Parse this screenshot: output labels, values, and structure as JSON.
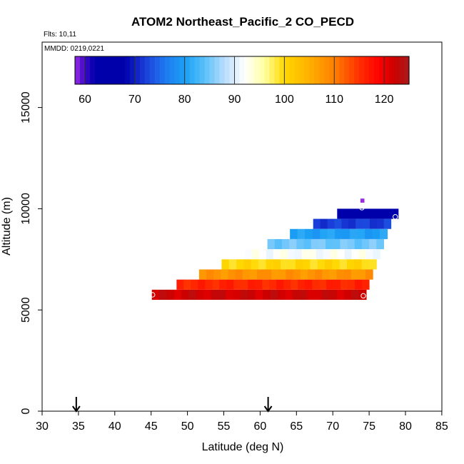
{
  "chart_data": {
    "type": "heatmap",
    "title": "ATOM2 Northeast_Pacific_2 CO_PECD",
    "flights_label": "Flts: 10,11",
    "dates_label": "MMDD: 0219,0221",
    "xlabel": "Latitude (deg N)",
    "ylabel": "Altitude (m)",
    "xlim": [
      30,
      85
    ],
    "ylim": [
      0,
      17500
    ],
    "xticks": [
      30,
      35,
      40,
      45,
      50,
      55,
      60,
      65,
      70,
      75,
      80,
      85
    ],
    "yticks": [
      0,
      5000,
      10000,
      15000
    ],
    "colorbar": {
      "min": 58,
      "max": 125,
      "ticks": [
        60,
        70,
        80,
        90,
        100,
        110,
        120
      ],
      "stops": [
        {
          "v": 58,
          "c": "#9a2be2"
        },
        {
          "v": 60,
          "c": "#3a08c8"
        },
        {
          "v": 62,
          "c": "#0000aa"
        },
        {
          "v": 68,
          "c": "#0000aa"
        },
        {
          "v": 72,
          "c": "#1a3cd8"
        },
        {
          "v": 76,
          "c": "#1e78f0"
        },
        {
          "v": 80,
          "c": "#1aa0f5"
        },
        {
          "v": 84,
          "c": "#5ac0fa"
        },
        {
          "v": 88,
          "c": "#b8dcfc"
        },
        {
          "v": 92,
          "c": "#ffffff"
        },
        {
          "v": 96,
          "c": "#ffffa0"
        },
        {
          "v": 100,
          "c": "#ffd800"
        },
        {
          "v": 105,
          "c": "#ffb000"
        },
        {
          "v": 110,
          "c": "#ff8000"
        },
        {
          "v": 115,
          "c": "#ff3000"
        },
        {
          "v": 119,
          "c": "#ff0000"
        },
        {
          "v": 122,
          "c": "#cc0000"
        },
        {
          "v": 125,
          "c": "#a81c1c"
        }
      ]
    },
    "layers": [
      {
        "alt_min": 10300,
        "alt_max": 10500,
        "lat_min": 73.8,
        "lat_max": 74.3,
        "value": 58
      },
      {
        "alt_min": 9500,
        "alt_max": 10000,
        "lat_min": 70.6,
        "lat_max": 79.0,
        "value": 66
      },
      {
        "alt_min": 9000,
        "alt_max": 9500,
        "lat_min": 67.3,
        "lat_max": 78.0,
        "value": 72
      },
      {
        "alt_min": 8500,
        "alt_max": 9000,
        "lat_min": 64.1,
        "lat_max": 77.5,
        "value": 80
      },
      {
        "alt_min": 8000,
        "alt_max": 8500,
        "lat_min": 61.0,
        "lat_max": 77.0,
        "value": 85
      },
      {
        "alt_min": 7500,
        "alt_max": 8000,
        "lat_min": 57.9,
        "lat_max": 76.5,
        "value": 92
      },
      {
        "alt_min": 7000,
        "alt_max": 7500,
        "lat_min": 54.7,
        "lat_max": 76.0,
        "value": 100
      },
      {
        "alt_min": 6500,
        "alt_max": 7000,
        "lat_min": 51.6,
        "lat_max": 75.5,
        "value": 108
      },
      {
        "alt_min": 6000,
        "alt_max": 6500,
        "lat_min": 48.5,
        "lat_max": 75.0,
        "value": 116
      },
      {
        "alt_min": 5500,
        "alt_max": 6000,
        "lat_min": 45.1,
        "lat_max": 74.6,
        "value": 122
      }
    ],
    "markers": [
      {
        "lat": 74.0,
        "alt": 10050
      },
      {
        "lat": 78.6,
        "alt": 9600
      },
      {
        "lat": 45.2,
        "alt": 5750
      },
      {
        "lat": 74.2,
        "alt": 5700
      }
    ],
    "arrows": [
      34.7,
      61.1
    ]
  }
}
